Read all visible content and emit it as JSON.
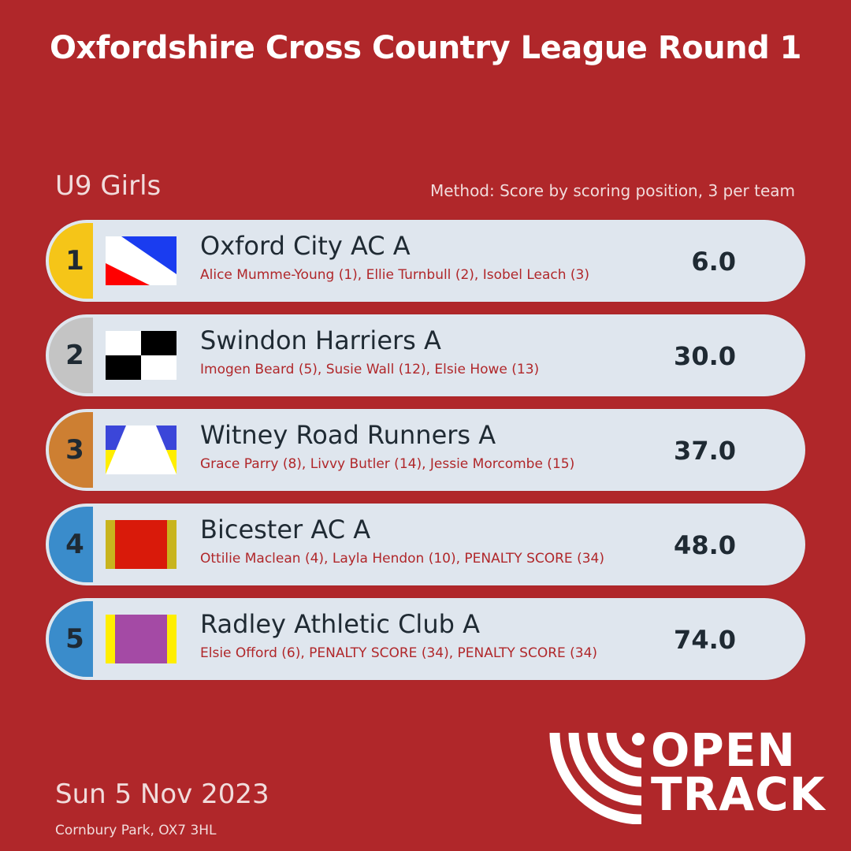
{
  "header": {
    "title": "Oxfordshire Cross Country League Round 1",
    "category": "U9 Girls",
    "method": "Method: Score by scoring position, 3 per team"
  },
  "results": [
    {
      "position": "1",
      "team": "Oxford City AC A",
      "athletes": "Alice Mumme-Young (1), Ellie Turnbull (2), Isobel Leach (3)",
      "score": "6.0",
      "position_color": "#f5c518",
      "flag": "oxford"
    },
    {
      "position": "2",
      "team": "Swindon Harriers A",
      "athletes": "Imogen Beard (5), Susie Wall (12), Elsie Howe (13)",
      "score": "30.0",
      "position_color": "#c4c4c4",
      "flag": "swindon"
    },
    {
      "position": "3",
      "team": "Witney Road Runners A",
      "athletes": "Grace Parry (8), Livvy Butler (14), Jessie Morcombe (15)",
      "score": "37.0",
      "position_color": "#cd7f32",
      "flag": "witney"
    },
    {
      "position": "4",
      "team": "Bicester AC A",
      "athletes": "Ottilie Maclean (4), Layla Hendon (10), PENALTY SCORE (34)",
      "score": "48.0",
      "position_color": "#3a8ccb",
      "flag": "bicester"
    },
    {
      "position": "5",
      "team": "Radley Athletic Club A",
      "athletes": "Elsie Offord (6), PENALTY SCORE (34), PENALTY SCORE (34)",
      "score": "74.0",
      "position_color": "#3a8ccb",
      "flag": "radley"
    }
  ],
  "footer": {
    "date": "Sun 5 Nov 2023",
    "venue": "Cornbury Park, OX7 3HL",
    "logo_line1": "OPEN",
    "logo_line2": "TRACK"
  },
  "colors": {
    "background": "#b0272a",
    "row": "#dfe6ee",
    "text_dark": "#1f2a33"
  }
}
